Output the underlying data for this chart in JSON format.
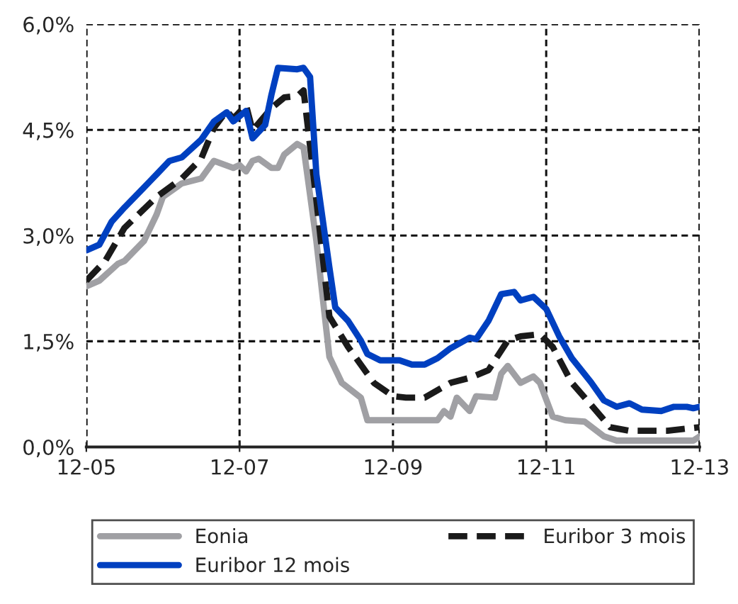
{
  "chart_data": {
    "type": "line",
    "xlim": [
      "2005-12",
      "2013-12"
    ],
    "xticks": [
      {
        "value": "2005-12",
        "label": "12-05"
      },
      {
        "value": "2007-12",
        "label": "12-07"
      },
      {
        "value": "2009-12",
        "label": "12-09"
      },
      {
        "value": "2011-12",
        "label": "12-11"
      },
      {
        "value": "2013-12",
        "label": "12-13"
      }
    ],
    "ylim": [
      0,
      6
    ],
    "yticks": [
      {
        "value": 0,
        "label": "0,0%"
      },
      {
        "value": 1.5,
        "label": "1,5%"
      },
      {
        "value": 3,
        "label": "3,0%"
      },
      {
        "value": 4.5,
        "label": "4,5%"
      },
      {
        "value": 6,
        "label": "6,0%"
      }
    ],
    "grid": true,
    "legend": "bottom",
    "series": [
      {
        "name": "Eonia",
        "color": "#a0a0a4",
        "line_style": "solid",
        "x": [
          "2005-12",
          "2006-02",
          "2006-05",
          "2006-06",
          "2006-09",
          "2006-11",
          "2006-12",
          "2007-03",
          "2007-06",
          "2007-08",
          "2007-11",
          "2007-12",
          "2008-01",
          "2008-02",
          "2008-03",
          "2008-05",
          "2008-06",
          "2008-07",
          "2008-09",
          "2008-10",
          "2008-12",
          "2009-02",
          "2009-04",
          "2009-07",
          "2009-08",
          "2010-07",
          "2010-08",
          "2010-09",
          "2010-10",
          "2010-12",
          "2011-01",
          "2011-04",
          "2011-05",
          "2011-06",
          "2011-08",
          "2011-10",
          "2011-11",
          "2012-01",
          "2012-03",
          "2012-06",
          "2012-09",
          "2012-11",
          "2013-11",
          "2013-12"
        ],
        "values": [
          2.28,
          2.36,
          2.6,
          2.64,
          2.92,
          3.3,
          3.55,
          3.74,
          3.81,
          4.06,
          3.96,
          4.0,
          3.91,
          4.06,
          4.09,
          3.96,
          3.96,
          4.15,
          4.3,
          4.25,
          2.92,
          1.28,
          0.91,
          0.7,
          0.38,
          0.38,
          0.51,
          0.43,
          0.7,
          0.51,
          0.72,
          0.7,
          1.04,
          1.15,
          0.91,
          1.0,
          0.91,
          0.43,
          0.38,
          0.36,
          0.15,
          0.09,
          0.09,
          0.15
        ]
      },
      {
        "name": "Euribor 3 mois",
        "color": "#1a1a1a",
        "line_style": "dashed",
        "x": [
          "2005-12",
          "2006-03",
          "2006-06",
          "2006-11",
          "2007-03",
          "2007-06",
          "2007-08",
          "2007-10",
          "2007-11",
          "2008-01",
          "2008-02",
          "2008-05",
          "2008-07",
          "2008-09",
          "2008-10",
          "2008-12",
          "2009-02",
          "2009-05",
          "2009-09",
          "2009-12",
          "2010-02",
          "2010-05",
          "2010-09",
          "2010-12",
          "2011-03",
          "2011-06",
          "2011-08",
          "2011-11",
          "2012-01",
          "2012-04",
          "2012-07",
          "2012-10",
          "2013-01",
          "2013-04",
          "2013-07",
          "2013-12"
        ],
        "values": [
          2.36,
          2.64,
          3.11,
          3.55,
          3.81,
          4.09,
          4.53,
          4.77,
          4.66,
          4.85,
          4.49,
          4.81,
          4.96,
          4.98,
          5.06,
          3.5,
          1.85,
          1.42,
          0.91,
          0.72,
          0.7,
          0.7,
          0.91,
          0.98,
          1.09,
          1.51,
          1.57,
          1.6,
          1.42,
          0.91,
          0.6,
          0.28,
          0.23,
          0.23,
          0.23,
          0.28
        ]
      },
      {
        "name": "Euribor 12 mois",
        "color": "#0040c0",
        "line_style": "solid",
        "x": [
          "2005-12",
          "2006-02",
          "2006-04",
          "2006-06",
          "2006-09",
          "2006-11",
          "2007-01",
          "2007-03",
          "2007-06",
          "2007-08",
          "2007-10",
          "2007-11",
          "2008-01",
          "2008-02",
          "2008-04",
          "2008-05",
          "2008-06",
          "2008-09",
          "2008-10",
          "2008-11",
          "2008-12",
          "2009-02",
          "2009-03",
          "2009-05",
          "2009-07",
          "2009-08",
          "2009-10",
          "2010-01",
          "2010-03",
          "2010-05",
          "2010-07",
          "2010-09",
          "2010-12",
          "2011-01",
          "2011-03",
          "2011-05",
          "2011-07",
          "2011-08",
          "2011-10",
          "2011-12",
          "2012-02",
          "2012-04",
          "2012-07",
          "2012-09",
          "2012-11",
          "2013-01",
          "2013-03",
          "2013-06",
          "2013-08",
          "2013-10",
          "2013-11",
          "2013-12"
        ],
        "values": [
          2.79,
          2.87,
          3.2,
          3.4,
          3.68,
          3.87,
          4.06,
          4.11,
          4.36,
          4.62,
          4.75,
          4.62,
          4.77,
          4.38,
          4.57,
          5.0,
          5.38,
          5.36,
          5.38,
          5.25,
          3.87,
          2.55,
          1.98,
          1.79,
          1.51,
          1.32,
          1.23,
          1.23,
          1.17,
          1.17,
          1.26,
          1.4,
          1.55,
          1.53,
          1.79,
          2.17,
          2.2,
          2.08,
          2.13,
          1.96,
          1.57,
          1.26,
          0.92,
          0.66,
          0.57,
          0.62,
          0.53,
          0.51,
          0.57,
          0.57,
          0.55,
          0.57
        ]
      }
    ]
  }
}
